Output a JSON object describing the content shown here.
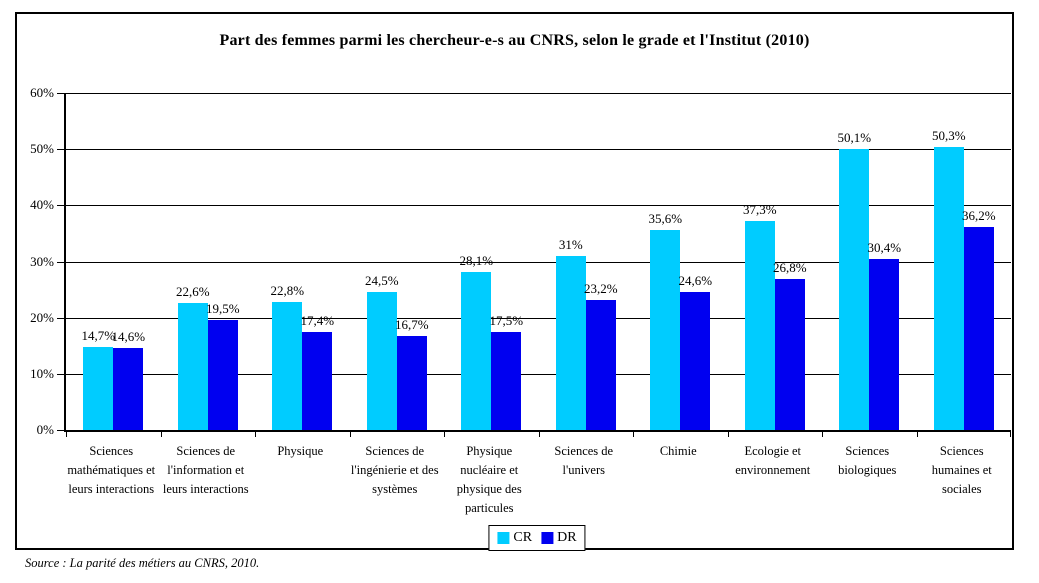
{
  "source": "Source : La parité des métiers au CNRS, 2010.",
  "chart_data": {
    "type": "bar",
    "title": "Part des femmes parmi les chercheur-e-s au CNRS, selon le grade et l'Institut (2010)",
    "categories": [
      "Sciences mathématiques et leurs interactions",
      "Sciences de l'information et leurs interactions",
      "Physique",
      "Sciences de l'ingénierie et des systèmes",
      "Physique nucléaire et physique des particules",
      "Sciences de l'univers",
      "Chimie",
      "Ecologie et environnement",
      "Sciences biologiques",
      "Sciences humaines et sociales"
    ],
    "series": [
      {
        "name": "CR",
        "color": "#00CCFF",
        "values": [
          14.7,
          22.6,
          22.8,
          24.5,
          28.1,
          31,
          35.6,
          37.3,
          50.1,
          50.3
        ],
        "labels": [
          "14,7%",
          "22,6%",
          "22,8%",
          "24,5%",
          "28,1%",
          "31%",
          "35,6%",
          "37,3%",
          "50,1%",
          "50,3%"
        ]
      },
      {
        "name": "DR",
        "color": "#0000F0",
        "values": [
          14.6,
          19.5,
          17.4,
          16.7,
          17.5,
          23.2,
          24.6,
          26.8,
          30.4,
          36.2
        ],
        "labels": [
          "14,6%",
          "19,5%",
          "17,4%",
          "16,7%",
          "17,5%",
          "23,2%",
          "24,6%",
          "26,8%",
          "30,4%",
          "36,2%"
        ]
      }
    ],
    "ylim": [
      0,
      60
    ],
    "ytick_step": 10,
    "ytick_labels": [
      "0%",
      "10%",
      "20%",
      "30%",
      "40%",
      "50%",
      "60%"
    ],
    "grid": true,
    "legend_position": "bottom-center"
  }
}
